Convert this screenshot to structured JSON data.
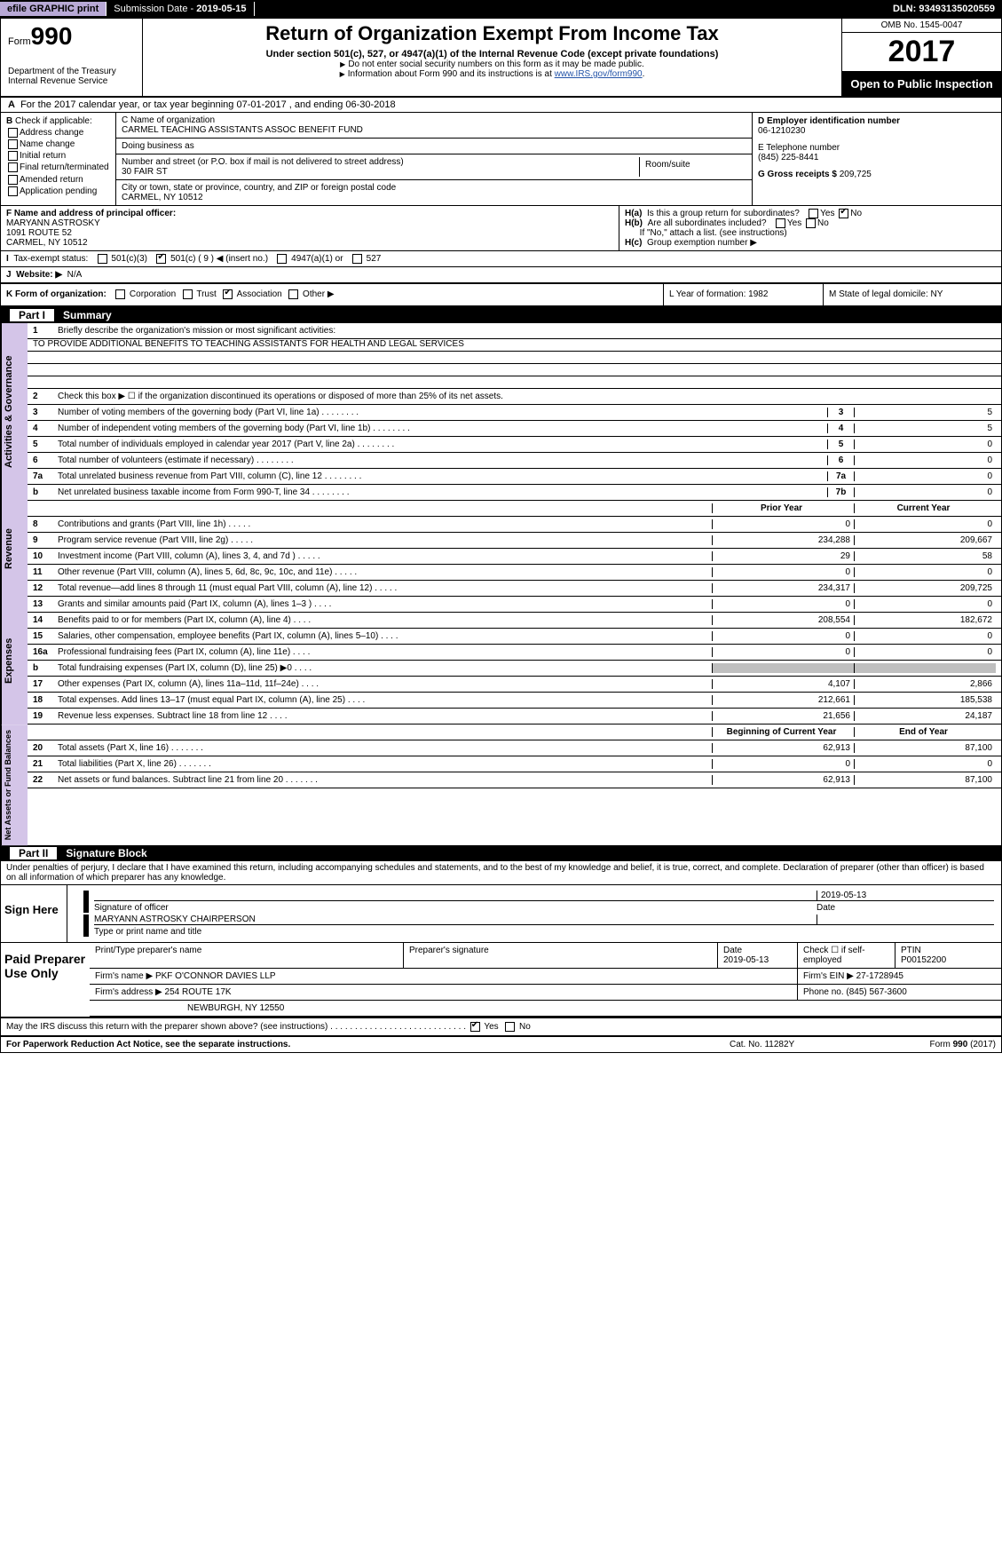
{
  "topbar": {
    "efile": "efile GRAPHIC print",
    "sub_label": "Submission Date -",
    "sub_date": "2019-05-15",
    "dln_label": "DLN:",
    "dln": "93493135020559"
  },
  "header": {
    "form_prefix": "Form",
    "form_no": "990",
    "dept": "Department of the Treasury\nInternal Revenue Service",
    "title": "Return of Organization Exempt From Income Tax",
    "sub": "Under section 501(c), 527, or 4947(a)(1) of the Internal Revenue Code (except private foundations)",
    "note1": "Do not enter social security numbers on this form as it may be made public.",
    "note2": "Information about Form 990 and its instructions is at ",
    "link": "www.IRS.gov/form990",
    "omb": "OMB No. 1545-0047",
    "year": "2017",
    "open": "Open to Public Inspection"
  },
  "A": {
    "text": "For the 2017 calendar year, or tax year beginning 07-01-2017     , and ending 06-30-2018"
  },
  "B": {
    "title": "Check if applicable:",
    "items": [
      "Address change",
      "Name change",
      "Initial return",
      "Final return/terminated",
      "Amended return",
      "Application pending"
    ]
  },
  "C": {
    "name_lbl": "C Name of organization",
    "name": "CARMEL TEACHING ASSISTANTS ASSOC BENEFIT FUND",
    "dba_lbl": "Doing business as",
    "dba": "",
    "street_lbl": "Number and street (or P.O. box if mail is not delivered to street address)",
    "street": "30 FAIR ST",
    "room_lbl": "Room/suite",
    "room": "",
    "city_lbl": "City or town, state or province, country, and ZIP or foreign postal code",
    "city": "CARMEL, NY  10512"
  },
  "D": {
    "ein_lbl": "D Employer identification number",
    "ein": "06-1210230",
    "tel_lbl": "E Telephone number",
    "tel": "(845) 225-8441",
    "gross_lbl": "G Gross receipts $",
    "gross": "209,725"
  },
  "F": {
    "lbl": "F Name and address of principal officer:",
    "name": "MARYANN ASTROSKY",
    "addr1": "1091 ROUTE 52",
    "addr2": "CARMEL, NY  10512"
  },
  "H": {
    "a": "Is this a group return for subordinates?",
    "b": "Are all subordinates included?",
    "b_note": "If \"No,\" attach a list. (see instructions)",
    "c": "Group exemption number ▶"
  },
  "I": {
    "lbl": "Tax-exempt status:",
    "opts": [
      "501(c)(3)",
      "501(c) ( 9 ) ◀ (insert no.)",
      "4947(a)(1) or",
      "527"
    ]
  },
  "J": {
    "lbl": "Website: ▶",
    "val": "N/A"
  },
  "K": {
    "lbl": "K Form of organization:",
    "opts": [
      "Corporation",
      "Trust",
      "Association",
      "Other ▶"
    ],
    "L": "L Year of formation: 1982",
    "M": "M State of legal domicile: NY"
  },
  "part1": {
    "hdr_num": "Part I",
    "hdr_title": "Summary",
    "sideA": "Activities & Governance",
    "sideR": "Revenue",
    "sideE": "Expenses",
    "sideN": "Net Assets or Fund Balances",
    "l1": "Briefly describe the organization's mission or most significant activities:",
    "mission": "TO PROVIDE ADDITIONAL BENEFITS TO TEACHING ASSISTANTS FOR HEALTH AND LEGAL SERVICES",
    "l2": "Check this box ▶ ☐ if the organization discontinued its operations or disposed of more than 25% of its net assets.",
    "rows_ag": [
      {
        "n": "3",
        "d": "Number of voting members of the governing body (Part VI, line 1a)",
        "box": "3",
        "v": "5"
      },
      {
        "n": "4",
        "d": "Number of independent voting members of the governing body (Part VI, line 1b)",
        "box": "4",
        "v": "5"
      },
      {
        "n": "5",
        "d": "Total number of individuals employed in calendar year 2017 (Part V, line 2a)",
        "box": "5",
        "v": "0"
      },
      {
        "n": "6",
        "d": "Total number of volunteers (estimate if necessary)",
        "box": "6",
        "v": "0"
      },
      {
        "n": "7a",
        "d": "Total unrelated business revenue from Part VIII, column (C), line 12",
        "box": "7a",
        "v": "0"
      },
      {
        "n": "b",
        "d": "Net unrelated business taxable income from Form 990-T, line 34",
        "box": "7b",
        "v": "0"
      }
    ],
    "col_prior": "Prior Year",
    "col_current": "Current Year",
    "rows_rev": [
      {
        "n": "8",
        "d": "Contributions and grants (Part VIII, line 1h)",
        "p": "0",
        "c": "0"
      },
      {
        "n": "9",
        "d": "Program service revenue (Part VIII, line 2g)",
        "p": "234,288",
        "c": "209,667"
      },
      {
        "n": "10",
        "d": "Investment income (Part VIII, column (A), lines 3, 4, and 7d )",
        "p": "29",
        "c": "58"
      },
      {
        "n": "11",
        "d": "Other revenue (Part VIII, column (A), lines 5, 6d, 8c, 9c, 10c, and 11e)",
        "p": "0",
        "c": "0"
      },
      {
        "n": "12",
        "d": "Total revenue—add lines 8 through 11 (must equal Part VIII, column (A), line 12)",
        "p": "234,317",
        "c": "209,725"
      }
    ],
    "rows_exp": [
      {
        "n": "13",
        "d": "Grants and similar amounts paid (Part IX, column (A), lines 1–3 )",
        "p": "0",
        "c": "0"
      },
      {
        "n": "14",
        "d": "Benefits paid to or for members (Part IX, column (A), line 4)",
        "p": "208,554",
        "c": "182,672"
      },
      {
        "n": "15",
        "d": "Salaries, other compensation, employee benefits (Part IX, column (A), lines 5–10)",
        "p": "0",
        "c": "0"
      },
      {
        "n": "16a",
        "d": "Professional fundraising fees (Part IX, column (A), line 11e)",
        "p": "0",
        "c": "0"
      },
      {
        "n": "b",
        "d": "Total fundraising expenses (Part IX, column (D), line 25) ▶0",
        "p": "",
        "c": "",
        "fill": true
      },
      {
        "n": "17",
        "d": "Other expenses (Part IX, column (A), lines 11a–11d, 11f–24e)",
        "p": "4,107",
        "c": "2,866"
      },
      {
        "n": "18",
        "d": "Total expenses. Add lines 13–17 (must equal Part IX, column (A), line 25)",
        "p": "212,661",
        "c": "185,538"
      },
      {
        "n": "19",
        "d": "Revenue less expenses. Subtract line 18 from line 12",
        "p": "21,656",
        "c": "24,187"
      }
    ],
    "col_beg": "Beginning of Current Year",
    "col_end": "End of Year",
    "rows_net": [
      {
        "n": "20",
        "d": "Total assets (Part X, line 16)",
        "p": "62,913",
        "c": "87,100"
      },
      {
        "n": "21",
        "d": "Total liabilities (Part X, line 26)",
        "p": "0",
        "c": "0"
      },
      {
        "n": "22",
        "d": "Net assets or fund balances. Subtract line 21 from line 20",
        "p": "62,913",
        "c": "87,100"
      }
    ]
  },
  "part2": {
    "hdr_num": "Part II",
    "hdr_title": "Signature Block",
    "note": "Under penalties of perjury, I declare that I have examined this return, including accompanying schedules and statements, and to the best of my knowledge and belief, it is true, correct, and complete. Declaration of preparer (other than officer) is based on all information of which preparer has any knowledge."
  },
  "sign": {
    "lbl": "Sign Here",
    "sig_lbl": "Signature of officer",
    "date": "2019-05-13",
    "date_lbl": "Date",
    "name": "MARYANN ASTROSKY  CHAIRPERSON",
    "name_lbl": "Type or print name and title"
  },
  "prep": {
    "lbl": "Paid Preparer Use Only",
    "h1": "Print/Type preparer's name",
    "h2": "Preparer's signature",
    "h3": "Date",
    "h3v": "2019-05-13",
    "h4": "Check ☐ if self-employed",
    "h5": "PTIN",
    "h5v": "P00152200",
    "firm_name_lbl": "Firm's name    ▶",
    "firm_name": "PKF O'CONNOR DAVIES LLP",
    "firm_ein_lbl": "Firm's EIN ▶",
    "firm_ein": "27-1728945",
    "firm_addr_lbl": "Firm's address ▶",
    "firm_addr": "254 ROUTE 17K",
    "firm_addr2": "NEWBURGH, NY  12550",
    "phone_lbl": "Phone no.",
    "phone": "(845) 567-3600",
    "discuss": "May the IRS discuss this return with the preparer shown above? (see instructions)"
  },
  "footer": {
    "left": "For Paperwork Reduction Act Notice, see the separate instructions.",
    "mid": "Cat. No. 11282Y",
    "right": "Form 990 (2017)"
  }
}
